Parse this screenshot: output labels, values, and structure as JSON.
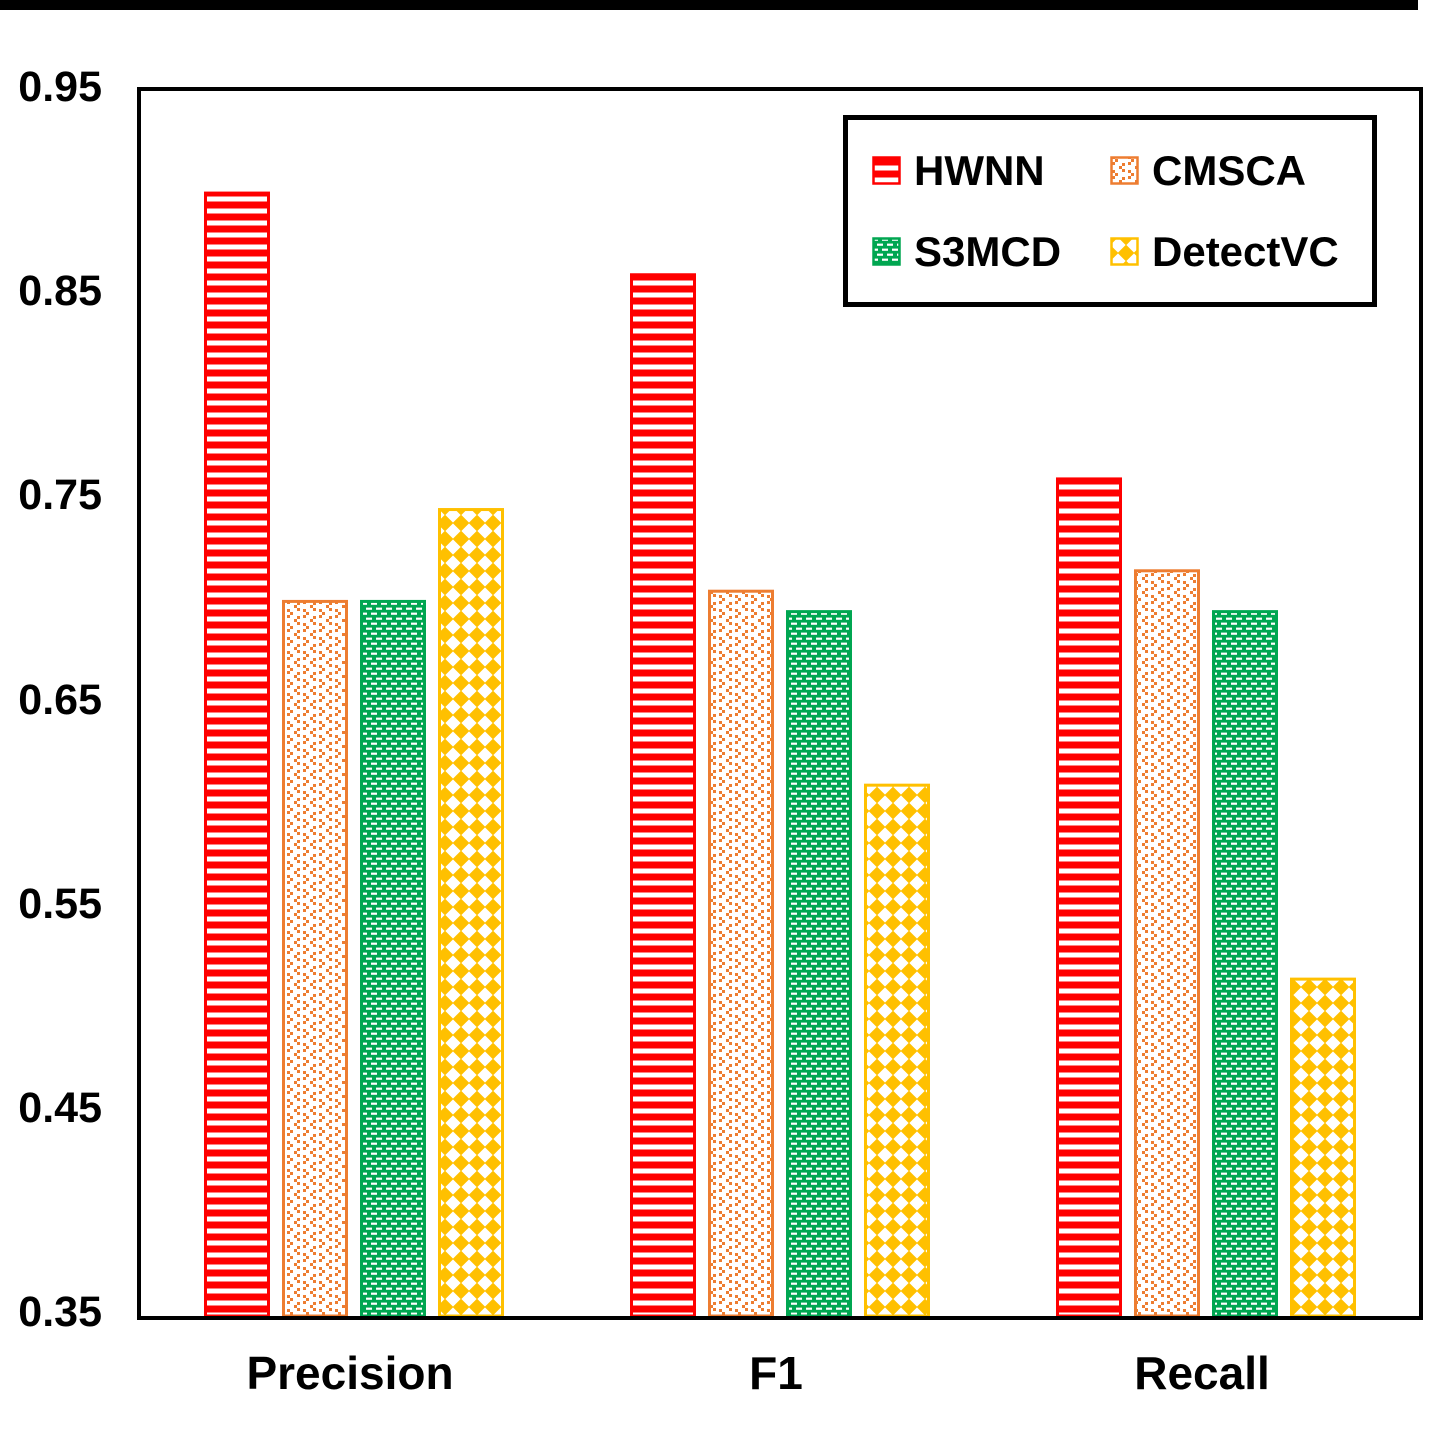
{
  "y_axis": {
    "ticks": [
      "0.95",
      "0.85",
      "0.75",
      "0.65",
      "0.55",
      "0.45",
      "0.35"
    ]
  },
  "x_axis": {
    "categories": [
      "Precision",
      "F1",
      "Recall"
    ]
  },
  "legend": {
    "labels": [
      "HWNN",
      "CMSCA",
      "S3MCD",
      "DetectVC"
    ]
  },
  "chart_data": {
    "type": "bar",
    "categories": [
      "Precision",
      "F1",
      "Recall"
    ],
    "series": [
      {
        "name": "HWNN",
        "color": "#FF0000",
        "pattern": "horizontal-stripes",
        "values": [
          0.9,
          0.86,
          0.76
        ]
      },
      {
        "name": "CMSCA",
        "color": "#ED7D31",
        "pattern": "chevron-dots",
        "values": [
          0.7,
          0.705,
          0.715
        ]
      },
      {
        "name": "S3MCD",
        "color": "#00A651",
        "pattern": "white-dashes",
        "values": [
          0.7,
          0.695,
          0.695
        ]
      },
      {
        "name": "DetectVC",
        "color": "#FFC000",
        "pattern": "diamond-checker",
        "values": [
          0.745,
          0.61,
          0.515
        ]
      }
    ],
    "title": "",
    "xlabel": "",
    "ylabel": "",
    "ylim": [
      0.35,
      0.95
    ],
    "ytick_step": 0.1,
    "grid": false,
    "legend_position": "top-right-inside",
    "bar_fill_background": "#ffffff"
  }
}
